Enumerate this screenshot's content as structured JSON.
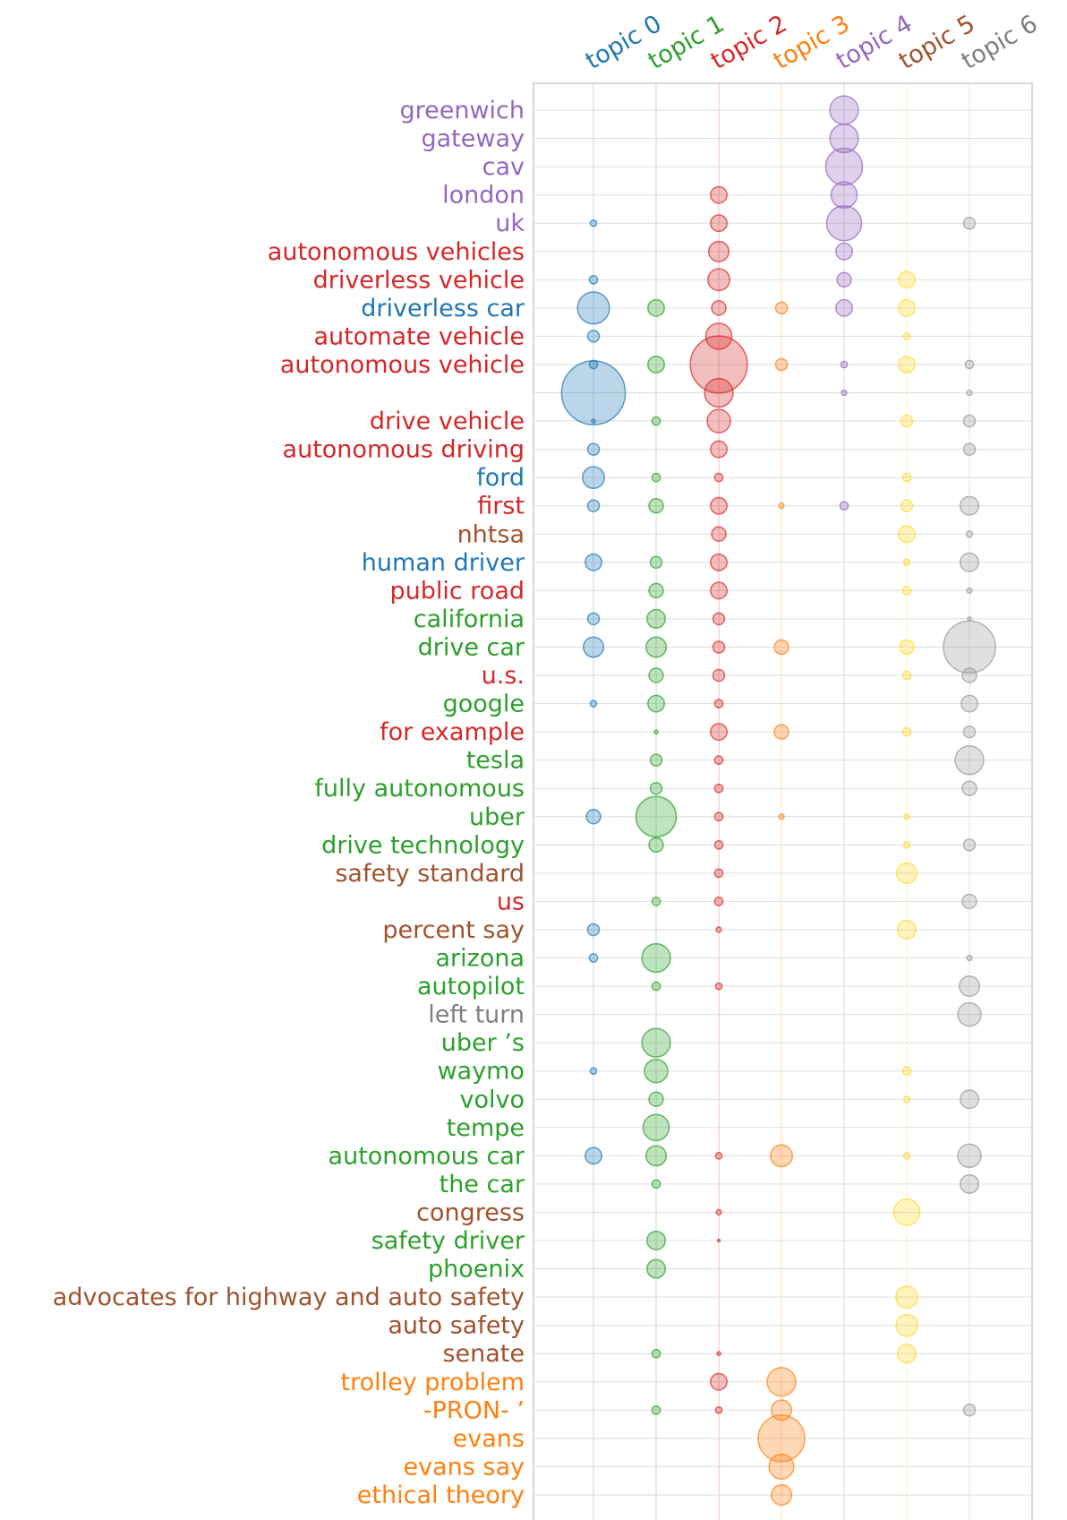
{
  "chart_data": {
    "type": "scatter",
    "title": "",
    "xlabel": "",
    "ylabel": "",
    "topics": [
      {
        "name": "topic 0",
        "color": "#1f77b4"
      },
      {
        "name": "topic 1",
        "color": "#2ca02c"
      },
      {
        "name": "topic 2",
        "color": "#d62728"
      },
      {
        "name": "topic 3",
        "color": "#ff7f0e"
      },
      {
        "name": "topic 4",
        "color": "#9467bd"
      },
      {
        "name": "topic 5",
        "color": "#a0522d"
      },
      {
        "name": "topic 6",
        "color": "#7f7f7f"
      }
    ],
    "marker_colors": [
      "#1f77b4",
      "#2ca02c",
      "#d62728",
      "#ff7f0e",
      "#9467bd",
      "#ffd92f",
      "#999999"
    ],
    "terms": [
      {
        "label": "greenwich",
        "topic": 4,
        "values": [
          0,
          0,
          0,
          0,
          6,
          0,
          0
        ]
      },
      {
        "label": "gateway",
        "topic": 4,
        "values": [
          0,
          0,
          0,
          0,
          6,
          0,
          0
        ]
      },
      {
        "label": "cav",
        "topic": 4,
        "values": [
          0,
          0,
          0,
          0,
          10,
          0,
          0
        ]
      },
      {
        "label": "london",
        "topic": 4,
        "values": [
          0,
          0,
          2,
          0,
          5,
          0,
          0
        ]
      },
      {
        "label": "uk",
        "topic": 4,
        "values": [
          0.3,
          0,
          2,
          0,
          9,
          0,
          1
        ]
      },
      {
        "label": "autonomous vehicles",
        "topic": 2,
        "values": [
          0,
          0,
          3,
          0,
          2,
          0,
          0
        ]
      },
      {
        "label": "driverless vehicle",
        "topic": 2,
        "values": [
          0.5,
          0,
          3.5,
          0,
          1.5,
          2,
          0
        ]
      },
      {
        "label": "driverless car",
        "topic": 0,
        "values": [
          7.5,
          2,
          1.5,
          1,
          2,
          2,
          0
        ]
      },
      {
        "label": "automate vehicle",
        "topic": 2,
        "values": [
          1,
          0,
          5,
          0,
          0,
          0.3,
          0
        ]
      },
      {
        "label": "autonomous vehicle",
        "topic": 2,
        "values": [
          0.5,
          2,
          24,
          1,
          0.3,
          2,
          0.5
        ]
      },
      {
        "label": "",
        "topic": 0,
        "values": [
          30,
          0,
          6,
          0,
          0.2,
          0,
          0.2
        ]
      },
      {
        "label": "drive vehicle",
        "topic": 2,
        "values": [
          0.1,
          0.5,
          4,
          0,
          0,
          1,
          1
        ]
      },
      {
        "label": "autonomous driving",
        "topic": 2,
        "values": [
          1,
          0,
          2,
          0,
          0,
          0,
          1
        ]
      },
      {
        "label": "ford",
        "topic": 0,
        "values": [
          3.5,
          0.5,
          0.5,
          0,
          0,
          0.5,
          0
        ]
      },
      {
        "label": "first",
        "topic": 2,
        "values": [
          1,
          1.5,
          2,
          0.2,
          0.5,
          1,
          2.5
        ]
      },
      {
        "label": "nhtsa",
        "topic": 5,
        "values": [
          0,
          0,
          1.5,
          0,
          0,
          2,
          0.3
        ]
      },
      {
        "label": "human driver",
        "topic": 0,
        "values": [
          2,
          1,
          2,
          0,
          0,
          0.3,
          2.5
        ]
      },
      {
        "label": "public road",
        "topic": 2,
        "values": [
          0,
          1.5,
          2,
          0,
          0,
          0.5,
          0.2
        ]
      },
      {
        "label": "california",
        "topic": 1,
        "values": [
          1,
          2.5,
          1,
          0,
          0,
          0,
          0.1
        ]
      },
      {
        "label": "drive car",
        "topic": 1,
        "values": [
          3,
          3,
          1,
          1.5,
          0,
          1.5,
          20
        ]
      },
      {
        "label": "u.s.",
        "topic": 2,
        "values": [
          0,
          1.5,
          1,
          0,
          0,
          0.5,
          1.5
        ]
      },
      {
        "label": "google",
        "topic": 1,
        "values": [
          0.3,
          2,
          0.5,
          0,
          0,
          0,
          2
        ]
      },
      {
        "label": "for example",
        "topic": 2,
        "values": [
          0,
          0.1,
          2,
          1.5,
          0,
          0.5,
          1
        ]
      },
      {
        "label": "tesla",
        "topic": 1,
        "values": [
          0,
          1,
          0.5,
          0,
          0,
          0,
          6
        ]
      },
      {
        "label": "fully autonomous",
        "topic": 1,
        "values": [
          0,
          1,
          0.5,
          0,
          0,
          0,
          1.5
        ]
      },
      {
        "label": "uber",
        "topic": 1,
        "values": [
          1.5,
          12,
          0.5,
          0.2,
          0,
          0.2,
          0
        ]
      },
      {
        "label": "drive technology",
        "topic": 1,
        "values": [
          0,
          1.5,
          0.5,
          0,
          0,
          0.3,
          1
        ]
      },
      {
        "label": "safety standard",
        "topic": 5,
        "values": [
          0,
          0,
          0.5,
          0,
          0,
          3,
          0
        ]
      },
      {
        "label": "us",
        "topic": 2,
        "values": [
          0,
          0.5,
          0.5,
          0,
          0,
          0,
          1.5
        ]
      },
      {
        "label": "percent say",
        "topic": 5,
        "values": [
          1,
          0,
          0.2,
          0,
          0,
          2.5,
          0
        ]
      },
      {
        "label": "arizona",
        "topic": 1,
        "values": [
          0.5,
          6,
          0,
          0,
          0,
          0,
          0.2
        ]
      },
      {
        "label": "autopilot",
        "topic": 1,
        "values": [
          0,
          0.5,
          0.3,
          0,
          0,
          0,
          3
        ]
      },
      {
        "label": "left turn",
        "topic": 6,
        "values": [
          0,
          0,
          0,
          0,
          0,
          0,
          4
        ]
      },
      {
        "label": "uber ’s",
        "topic": 1,
        "values": [
          0,
          6,
          0,
          0,
          0,
          0,
          0
        ]
      },
      {
        "label": "waymo",
        "topic": 1,
        "values": [
          0.3,
          4,
          0,
          0,
          0,
          0.5,
          0
        ]
      },
      {
        "label": "volvo",
        "topic": 1,
        "values": [
          0,
          1.5,
          0,
          0,
          0,
          0.3,
          2.5
        ]
      },
      {
        "label": "tempe",
        "topic": 1,
        "values": [
          0,
          5,
          0,
          0,
          0,
          0,
          0
        ]
      },
      {
        "label": "autonomous car",
        "topic": 1,
        "values": [
          2,
          3,
          0.3,
          3.5,
          0,
          0.3,
          4
        ]
      },
      {
        "label": "the car",
        "topic": 1,
        "values": [
          0,
          0.5,
          0,
          0,
          0,
          0,
          2.5
        ]
      },
      {
        "label": "congress",
        "topic": 5,
        "values": [
          0,
          0,
          0.2,
          0,
          0,
          5,
          0
        ]
      },
      {
        "label": "safety driver",
        "topic": 1,
        "values": [
          0,
          2.5,
          0.05,
          0,
          0,
          0,
          0
        ]
      },
      {
        "label": "phoenix",
        "topic": 1,
        "values": [
          0,
          2.5,
          0,
          0,
          0,
          0,
          0
        ]
      },
      {
        "label": "advocates for highway and auto safety",
        "topic": 5,
        "values": [
          0,
          0,
          0,
          0,
          0,
          3.5,
          0
        ]
      },
      {
        "label": "auto safety",
        "topic": 5,
        "values": [
          0,
          0,
          0,
          0,
          0,
          3.5,
          0
        ]
      },
      {
        "label": "senate",
        "topic": 5,
        "values": [
          0,
          0.5,
          0.1,
          0,
          0,
          2.5,
          0
        ]
      },
      {
        "label": "trolley problem",
        "topic": 3,
        "values": [
          0,
          0,
          2,
          6,
          0,
          0,
          0
        ]
      },
      {
        "label": "-PRON- ’",
        "topic": 3,
        "values": [
          0,
          0.5,
          0.3,
          3,
          0,
          0,
          1
        ]
      },
      {
        "label": "evans",
        "topic": 3,
        "values": [
          0,
          0,
          0,
          16,
          0,
          0,
          0
        ]
      },
      {
        "label": "evans say",
        "topic": 3,
        "values": [
          0,
          0,
          0,
          4.5,
          0,
          0,
          0
        ]
      },
      {
        "label": "ethical theory",
        "topic": 3,
        "values": [
          0,
          0,
          0,
          3,
          0,
          0,
          0
        ]
      }
    ]
  }
}
